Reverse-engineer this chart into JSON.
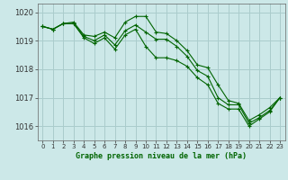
{
  "title": "Graphe pression niveau de la mer (hPa)",
  "background_color": "#cce8e8",
  "grid_color": "#aacccc",
  "line_color": "#006400",
  "marker_color": "#006400",
  "xlim": [
    -0.5,
    23.5
  ],
  "ylim": [
    1015.5,
    1020.3
  ],
  "yticks": [
    1016,
    1017,
    1018,
    1019,
    1020
  ],
  "xticks": [
    0,
    1,
    2,
    3,
    4,
    5,
    6,
    7,
    8,
    9,
    10,
    11,
    12,
    13,
    14,
    15,
    16,
    17,
    18,
    19,
    20,
    21,
    22,
    23
  ],
  "series": [
    [
      1019.5,
      1019.4,
      1019.6,
      1019.65,
      1019.2,
      1019.15,
      1019.3,
      1019.1,
      1019.65,
      1019.85,
      1019.85,
      1019.3,
      1019.25,
      1019.0,
      1018.65,
      1018.15,
      1018.05,
      1017.45,
      1016.9,
      1016.8,
      1016.2,
      1016.4,
      1016.65,
      1017.0
    ],
    [
      1019.5,
      1019.4,
      1019.6,
      1019.6,
      1019.15,
      1019.0,
      1019.2,
      1018.85,
      1019.35,
      1019.55,
      1019.3,
      1019.05,
      1019.05,
      1018.8,
      1018.45,
      1017.95,
      1017.75,
      1017.0,
      1016.75,
      1016.75,
      1016.1,
      1016.3,
      1016.55,
      1017.0
    ],
    [
      1019.5,
      1019.4,
      1019.6,
      1019.6,
      1019.1,
      1018.9,
      1019.1,
      1018.7,
      1019.2,
      1019.4,
      1018.8,
      1018.4,
      1018.4,
      1018.3,
      1018.1,
      1017.7,
      1017.45,
      1016.8,
      1016.6,
      1016.6,
      1016.0,
      1016.25,
      1016.5,
      1017.0
    ]
  ]
}
